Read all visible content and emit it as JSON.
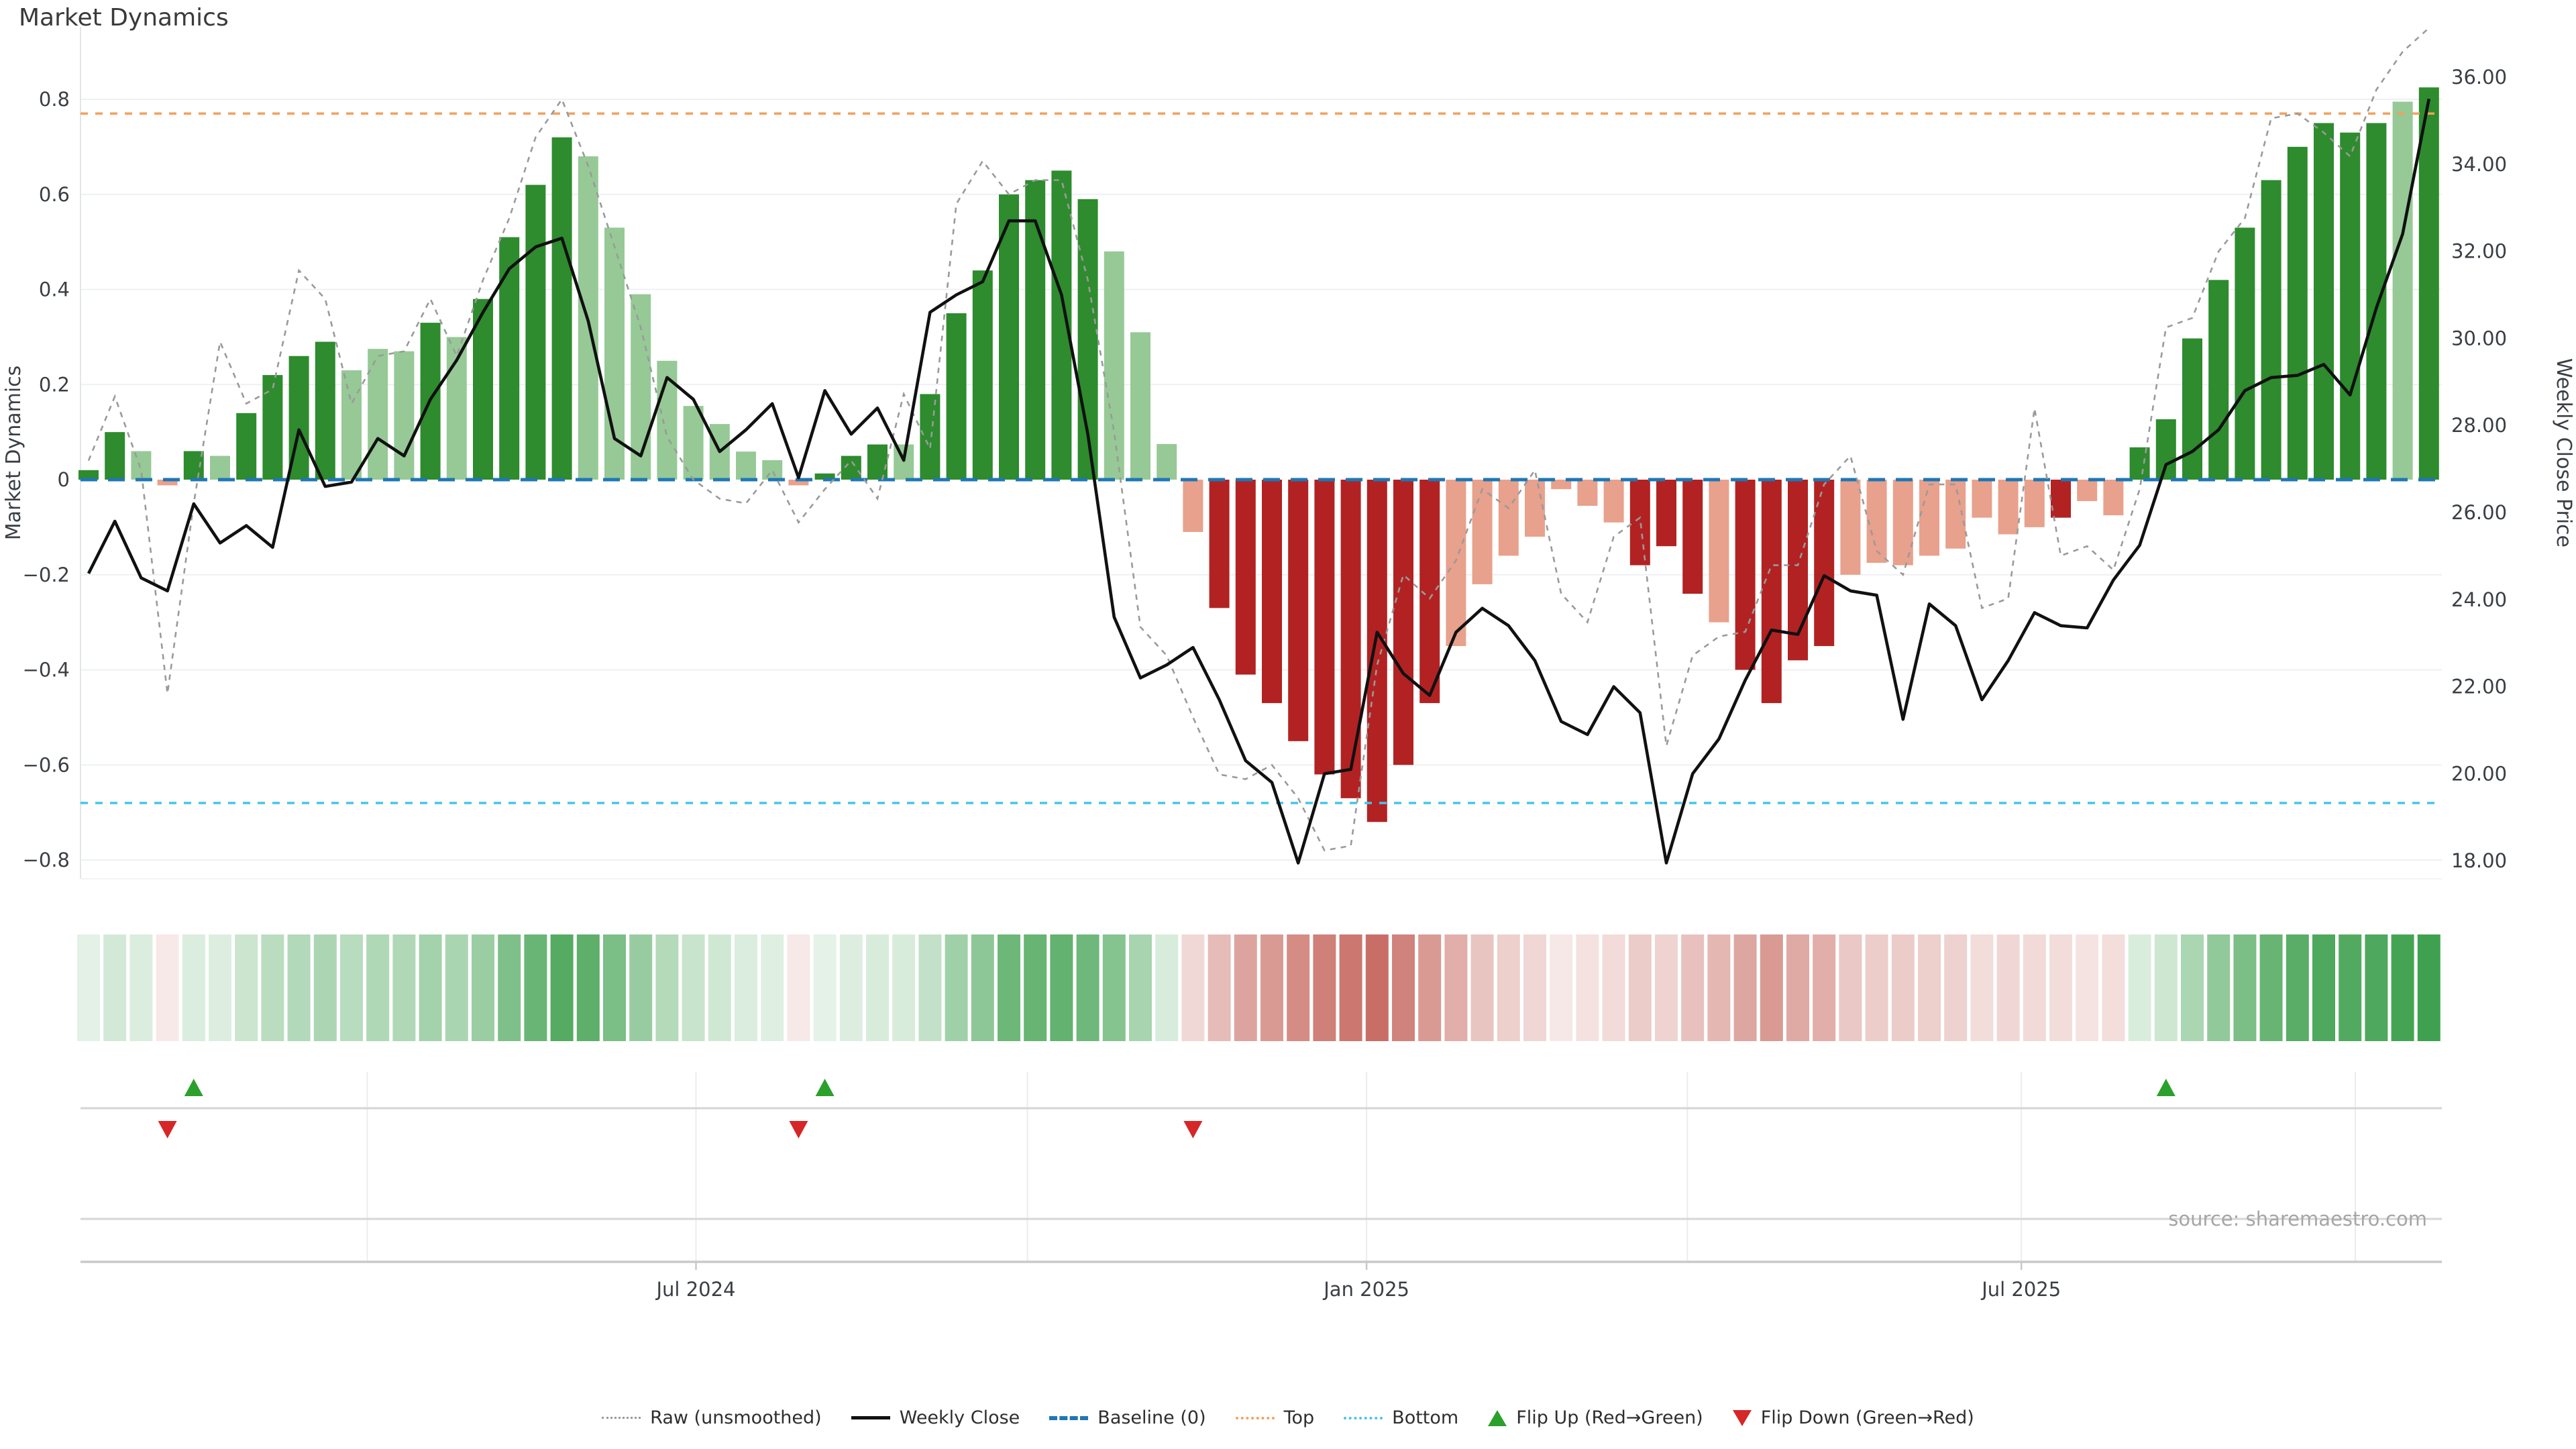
{
  "title": "Market Dynamics",
  "source": "source: sharemaestro.com",
  "axes": {
    "left_label": "Market Dynamics",
    "right_label": "Weekly Close Price",
    "left_ticks": [
      {
        "label": "0.8",
        "value": 0.8
      },
      {
        "label": "0.6",
        "value": 0.6
      },
      {
        "label": "0.4",
        "value": 0.4
      },
      {
        "label": "0.2",
        "value": 0.2
      },
      {
        "label": "0",
        "value": 0
      },
      {
        "label": "−0.2",
        "value": -0.2
      },
      {
        "label": "−0.4",
        "value": -0.4
      },
      {
        "label": "−0.6",
        "value": -0.6
      },
      {
        "label": "−0.8",
        "value": -0.8
      }
    ],
    "right_ticks": [
      {
        "label": "36.00",
        "value": 36
      },
      {
        "label": "34.00",
        "value": 34
      },
      {
        "label": "32.00",
        "value": 32
      },
      {
        "label": "30.00",
        "value": 30
      },
      {
        "label": "28.00",
        "value": 28
      },
      {
        "label": "26.00",
        "value": 26
      },
      {
        "label": "24.00",
        "value": 24
      },
      {
        "label": "22.00",
        "value": 22
      },
      {
        "label": "20.00",
        "value": 20
      },
      {
        "label": "18.00",
        "value": 18
      }
    ],
    "x_ticks": [
      {
        "label": "Jul 2024",
        "week": 24.1
      },
      {
        "label": "Jan 2025",
        "week": 49.6
      },
      {
        "label": "Jul 2025",
        "week": 74.5
      }
    ]
  },
  "chart_data": {
    "type": "bar+line",
    "x_unit": "weekly bars, Feb 2024 - Nov 2025",
    "n_weeks": 90,
    "left_axis": {
      "label": "Market Dynamics",
      "ylim": [
        -0.9,
        0.92
      ],
      "tick_step": 0.2
    },
    "right_axis": {
      "label": "Weekly Close Price",
      "ylim": [
        17.45,
        36.85
      ],
      "tick_step": 2.0
    },
    "baseline": 0,
    "top_threshold": 0.77,
    "bottom_threshold": -0.68,
    "flip_up_weeks": [
      5,
      29,
      80
    ],
    "flip_down_weeks": [
      4,
      28,
      43
    ],
    "quarter_grid_weeks": [
      11.6,
      24.1,
      36.7,
      49.6,
      61.8,
      74.5,
      87.2
    ],
    "bar_shades": "ddlldlddddllldlddddllllllllldddldddddddlllldddddddddllllllldddldddd lllllllldllddddddddddlddd",
    "series": [
      {
        "name": "Dynamics (smoothed bars)",
        "axis": "left",
        "values": [
          0.02,
          0.1,
          0.06,
          -0.012,
          0.06,
          0.05,
          0.14,
          0.22,
          0.26,
          0.29,
          0.23,
          0.275,
          0.27,
          0.33,
          0.3,
          0.38,
          0.51,
          0.62,
          0.72,
          0.68,
          0.53,
          0.39,
          0.25,
          0.155,
          0.117,
          0.059,
          0.041,
          -0.012,
          0.013,
          0.05,
          0.074,
          0.074,
          0.18,
          0.35,
          0.44,
          0.6,
          0.63,
          0.65,
          0.59,
          0.48,
          0.31,
          0.075,
          -0.11,
          -0.27,
          -0.41,
          -0.47,
          -0.55,
          -0.62,
          -0.67,
          -0.72,
          -0.6,
          -0.47,
          -0.35,
          -0.22,
          -0.16,
          -0.12,
          -0.02,
          -0.055,
          -0.09,
          -0.18,
          -0.14,
          -0.24,
          -0.3,
          -0.4,
          -0.47,
          -0.38,
          -0.35,
          -0.2,
          -0.175,
          -0.18,
          -0.16,
          -0.145,
          -0.08,
          -0.115,
          -0.1,
          -0.08,
          -0.045,
          -0.075,
          0.068,
          0.127,
          0.297,
          0.42,
          0.53,
          0.63,
          0.7,
          0.75,
          0.73,
          0.75,
          0.795,
          0.825
        ]
      },
      {
        "name": "Raw (unsmoothed)",
        "axis": "left",
        "values": [
          0.04,
          0.175,
          0.02,
          -0.45,
          -0.05,
          0.29,
          0.16,
          0.19,
          0.44,
          0.38,
          0.16,
          0.26,
          0.27,
          0.38,
          0.26,
          0.42,
          0.55,
          0.72,
          0.8,
          0.66,
          0.49,
          0.32,
          0.09,
          0.0,
          -0.04,
          -0.05,
          0.02,
          -0.09,
          -0.02,
          0.04,
          -0.04,
          0.18,
          0.065,
          0.58,
          0.67,
          0.6,
          0.63,
          0.63,
          0.42,
          0.1,
          -0.31,
          -0.37,
          -0.5,
          -0.62,
          -0.63,
          -0.6,
          -0.67,
          -0.78,
          -0.77,
          -0.39,
          -0.2,
          -0.25,
          -0.17,
          -0.02,
          -0.06,
          0.02,
          -0.24,
          -0.3,
          -0.12,
          -0.08,
          -0.56,
          -0.37,
          -0.33,
          -0.32,
          -0.18,
          -0.18,
          -0.01,
          0.05,
          -0.15,
          -0.2,
          -0.01,
          -0.01,
          -0.27,
          -0.25,
          0.15,
          -0.16,
          -0.14,
          -0.19,
          -0.02,
          0.32,
          0.34,
          0.48,
          0.55,
          0.76,
          0.77,
          0.73,
          0.68,
          0.82,
          0.9,
          0.95
        ]
      },
      {
        "name": "Weekly Close",
        "axis": "right",
        "values": [
          24.6,
          25.8,
          24.5,
          24.2,
          26.2,
          25.3,
          25.7,
          25.2,
          27.9,
          26.6,
          26.7,
          27.7,
          27.3,
          28.6,
          29.5,
          30.6,
          31.6,
          32.1,
          32.3,
          30.4,
          27.7,
          27.3,
          29.1,
          28.6,
          27.4,
          27.9,
          28.5,
          26.8,
          28.8,
          27.8,
          28.4,
          27.2,
          30.6,
          31.0,
          31.3,
          32.7,
          32.7,
          31.0,
          27.8,
          23.6,
          22.2,
          22.5,
          22.9,
          21.7,
          20.3,
          19.8,
          17.95,
          20.0,
          20.1,
          23.25,
          22.3,
          21.8,
          23.25,
          23.8,
          23.4,
          22.6,
          21.2,
          20.9,
          22.0,
          21.4,
          17.95,
          20.0,
          20.8,
          22.15,
          23.3,
          23.2,
          24.55,
          24.2,
          24.1,
          21.25,
          23.9,
          23.4,
          21.7,
          22.6,
          23.7,
          23.4,
          23.35,
          24.45,
          25.25,
          27.1,
          27.4,
          27.9,
          28.8,
          29.1,
          29.15,
          29.4,
          28.7,
          30.7,
          32.4,
          35.5
        ]
      }
    ],
    "heatmap": {
      "note": "one cell per week, intensity proportional to |dynamics|, green positive / red negative"
    }
  },
  "colors": {
    "dark_green": "#2e8b2e",
    "light_green": "#96c996",
    "dark_red": "#b22222",
    "light_red": "#e8a18c",
    "baseline_blue": "#1f77b4",
    "top_orange": "#f2a15f",
    "bottom_cyan": "#45c5ea",
    "raw_gray": "#9a9a9a",
    "close_black": "#111111",
    "flip_up_green": "#2ca02c",
    "flip_down_red": "#d62728",
    "grid": "#eef0f3",
    "spine": "#e3e6e8",
    "tick_text": "#3a3f44",
    "heat_green": "#3a9e4a",
    "heat_red": "#c0584e"
  },
  "legend": {
    "items": [
      {
        "label": "Raw (unsmoothed)",
        "type": "dashed-gray"
      },
      {
        "label": "Weekly Close",
        "type": "solid-black"
      },
      {
        "label": "Baseline (0)",
        "type": "dashed-blue"
      },
      {
        "label": "Top",
        "type": "dotted-orange"
      },
      {
        "label": "Bottom",
        "type": "dotted-cyan"
      },
      {
        "label": "Flip Up (Red→Green)",
        "type": "triangle-up"
      },
      {
        "label": "Flip Down (Green→Red)",
        "type": "triangle-down"
      }
    ]
  }
}
